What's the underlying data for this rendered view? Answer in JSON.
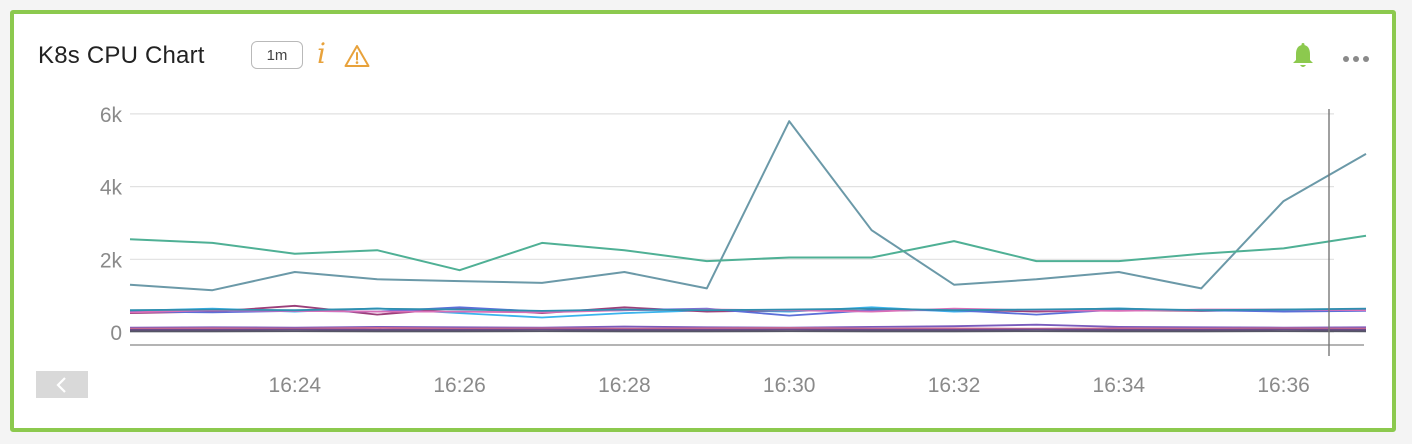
{
  "panel": {
    "title": "K8s CPU Chart",
    "interval_badge": "1m",
    "info_icon": "info-icon",
    "warning_icon": "warning-icon",
    "bell_icon": "bell-icon",
    "more_icon": "more-icon",
    "scroll_icon": "chevron-left-icon",
    "colors": {
      "border": "#8cc94e",
      "bell": "#8cc94e",
      "info": "#e8a23b",
      "warning": "#e8a23b"
    }
  },
  "chart_data": {
    "type": "line",
    "x": [
      "16:22",
      "16:23",
      "16:24",
      "16:25",
      "16:26",
      "16:27",
      "16:28",
      "16:29",
      "16:30",
      "16:31",
      "16:32",
      "16:33",
      "16:34",
      "16:35",
      "16:36",
      "16:37"
    ],
    "x_tick_labels": [
      "16:24",
      "16:26",
      "16:28",
      "16:30",
      "16:32",
      "16:34",
      "16:36"
    ],
    "y_tick_labels": [
      "0",
      "2k",
      "4k",
      "6k"
    ],
    "y_ticks": [
      0,
      2000,
      4000,
      6000
    ],
    "ylim": [
      -400,
      6300
    ],
    "grid": true,
    "legend": "none",
    "series": [
      {
        "color": "#6b99a8",
        "values": [
          1300,
          1150,
          1650,
          1450,
          1400,
          1350,
          1650,
          1200,
          5800,
          2800,
          1300,
          1450,
          1650,
          1200,
          3600,
          4900
        ]
      },
      {
        "color": "#4fb095",
        "values": [
          2550,
          2450,
          2150,
          2250,
          1700,
          2450,
          2250,
          1950,
          2050,
          2050,
          2500,
          1950,
          1950,
          2150,
          2300,
          2650
        ]
      },
      {
        "color": "#3ab3ec",
        "values": [
          580,
          640,
          560,
          650,
          520,
          400,
          520,
          600,
          560,
          680,
          560,
          600,
          650,
          580,
          600,
          620
        ]
      },
      {
        "color": "#9b3f7a",
        "values": [
          520,
          560,
          720,
          480,
          660,
          520,
          680,
          560,
          600,
          580,
          620,
          560,
          600,
          580,
          620,
          600
        ]
      },
      {
        "color": "#5b6fd8",
        "values": [
          560,
          540,
          580,
          560,
          680,
          560,
          600,
          640,
          450,
          600,
          600,
          480,
          620,
          600,
          560,
          580
        ]
      },
      {
        "color": "#d96fb8",
        "values": [
          540,
          600,
          580,
          560,
          560,
          540,
          600,
          620,
          600,
          560,
          640,
          600,
          580,
          620,
          620,
          600
        ]
      },
      {
        "color": "#2f8fb0",
        "values": [
          600,
          620,
          600,
          640,
          620,
          580,
          620,
          600,
          620,
          640,
          600,
          620,
          640,
          600,
          620,
          640
        ]
      },
      {
        "color": "#7a5bbd",
        "values": [
          120,
          130,
          120,
          140,
          130,
          120,
          150,
          130,
          120,
          140,
          160,
          200,
          140,
          130,
          120,
          130
        ]
      },
      {
        "color": "#d26a8e",
        "values": [
          90,
          100,
          90,
          110,
          90,
          100,
          90,
          100,
          110,
          90,
          100,
          90,
          100,
          90,
          100,
          90
        ]
      },
      {
        "color": "#6a4a8a",
        "values": [
          60,
          60,
          70,
          60,
          60,
          70,
          60,
          60,
          70,
          60,
          60,
          70,
          60,
          60,
          70,
          60
        ]
      },
      {
        "color": "#555566",
        "values": [
          20,
          20,
          25,
          20,
          20,
          25,
          20,
          20,
          25,
          20,
          20,
          25,
          20,
          20,
          25,
          20
        ]
      }
    ]
  }
}
